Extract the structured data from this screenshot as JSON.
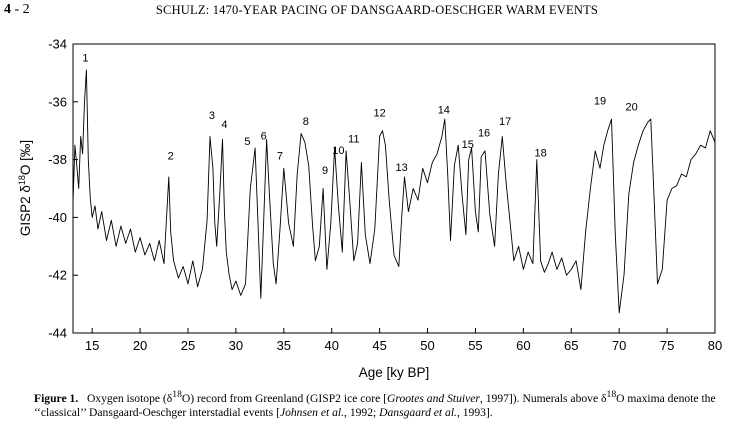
{
  "page": {
    "number": "4",
    "suffix": " - 2",
    "running_head": "SCHULZ: 1470-YEAR PACING OF DANSGAARD-OESCHGER WARM EVENTS"
  },
  "caption": {
    "label": "Figure 1.",
    "text": "Oxygen isotope (δ18O) record from Greenland (GISP2 ice core [Grootes and Stuiver, 1997]). Numerals above δ18O maxima denote the ‘‘classical’’ Dansgaard-Oeschger interstadial events [Johnsen et al., 1992; Dansgaard et al., 1993].",
    "p1": "Oxygen isotope (δ",
    "sup1": "18",
    "p2": "O) record from Greenland (GISP2 ice core [",
    "i1": "Grootes and Stuiver",
    "p3": ", 1997]). Numerals above δ",
    "sup2": "18",
    "p4": "O maxima denote the ‘‘classical’’ Dansgaard-Oeschger interstadial events [",
    "i2": "Johnsen et al.",
    "p5": ", 1992; ",
    "i3": "Dansgaard et al.",
    "p6": ", 1993]."
  },
  "chart_data": {
    "type": "line",
    "title": "",
    "xlabel": "Age [ky BP]",
    "ylabel": "GISP2 δ18O [‰]",
    "ylabel_parts": {
      "a": "GISP2 δ",
      "sup": "18",
      "b": "O [‰]"
    },
    "xlim": [
      13,
      80
    ],
    "ylim": [
      -44,
      -34
    ],
    "xticks": [
      15,
      20,
      25,
      30,
      35,
      40,
      45,
      50,
      55,
      60,
      65,
      70,
      75,
      80
    ],
    "yticks": [
      -34,
      -36,
      -38,
      -40,
      -42,
      -44
    ],
    "grid": false,
    "series": [
      {
        "name": "GISP2 δ18O",
        "x": [
          13.0,
          13.2,
          13.4,
          13.6,
          13.8,
          14.0,
          14.2,
          14.4,
          14.6,
          14.8,
          15.0,
          15.3,
          15.6,
          16.0,
          16.5,
          17.0,
          17.5,
          18.0,
          18.5,
          19.0,
          19.5,
          20.0,
          20.5,
          21.0,
          21.5,
          22.0,
          22.5,
          23.0,
          23.2,
          23.5,
          24.0,
          24.5,
          25.0,
          25.5,
          26.0,
          26.5,
          27.0,
          27.3,
          27.6,
          27.8,
          28.0,
          28.3,
          28.6,
          28.8,
          29.0,
          29.3,
          29.6,
          30.0,
          30.5,
          31.0,
          31.5,
          32.0,
          32.3,
          32.6,
          32.9,
          33.2,
          33.5,
          33.9,
          34.2,
          34.6,
          35.0,
          35.5,
          36.0,
          36.4,
          36.8,
          37.2,
          37.6,
          38.0,
          38.3,
          38.7,
          39.1,
          39.5,
          39.9,
          40.3,
          40.7,
          41.1,
          41.5,
          41.9,
          42.3,
          42.7,
          43.1,
          43.5,
          44.0,
          44.5,
          45.0,
          45.3,
          45.6,
          46.0,
          46.5,
          47.0,
          47.3,
          47.6,
          48.0,
          48.5,
          49.0,
          49.5,
          50.0,
          50.5,
          51.0,
          51.5,
          51.8,
          52.1,
          52.4,
          52.8,
          53.2,
          53.6,
          54.0,
          54.3,
          54.6,
          55.0,
          55.3,
          55.6,
          56.0,
          56.5,
          57.0,
          57.4,
          57.8,
          58.2,
          58.6,
          59.0,
          59.5,
          60.0,
          60.5,
          61.0,
          61.4,
          61.8,
          62.2,
          62.6,
          63.0,
          63.5,
          64.0,
          64.5,
          65.0,
          65.5,
          66.0,
          66.5,
          67.0,
          67.5,
          68.0,
          68.4,
          68.8,
          69.2,
          69.6,
          70.0,
          70.5,
          71.0,
          71.5,
          72.0,
          72.5,
          73.0,
          73.3,
          73.6,
          74.0,
          74.5,
          75.0,
          75.5,
          76.0,
          76.5,
          77.0,
          77.5,
          78.0,
          78.5,
          79.0,
          79.5,
          80.0
        ],
        "y": [
          -39.5,
          -37.5,
          -38.2,
          -39.0,
          -37.2,
          -37.8,
          -36.0,
          -34.9,
          -38.0,
          -39.3,
          -40.0,
          -39.6,
          -40.4,
          -39.8,
          -40.8,
          -40.1,
          -41.0,
          -40.3,
          -40.9,
          -40.4,
          -41.2,
          -40.7,
          -41.3,
          -40.9,
          -41.5,
          -40.8,
          -41.6,
          -38.6,
          -40.5,
          -41.5,
          -42.1,
          -41.7,
          -42.3,
          -41.5,
          -42.4,
          -41.8,
          -40.1,
          -37.2,
          -38.3,
          -40.2,
          -41.0,
          -39.3,
          -37.3,
          -39.8,
          -41.2,
          -42.0,
          -42.5,
          -42.2,
          -42.7,
          -42.3,
          -39.0,
          -37.6,
          -40.1,
          -42.8,
          -40.1,
          -37.3,
          -39.2,
          -41.6,
          -42.3,
          -40.4,
          -38.3,
          -40.2,
          -41.0,
          -38.5,
          -37.1,
          -37.4,
          -38.2,
          -40.3,
          -41.5,
          -41.0,
          -39.0,
          -41.8,
          -40.2,
          -37.6,
          -39.6,
          -41.2,
          -37.7,
          -39.5,
          -41.5,
          -40.9,
          -38.1,
          -40.6,
          -41.6,
          -40.4,
          -37.2,
          -37.0,
          -37.5,
          -39.4,
          -41.3,
          -41.7,
          -40.0,
          -38.6,
          -39.8,
          -39.0,
          -39.4,
          -38.3,
          -38.8,
          -38.1,
          -37.8,
          -37.2,
          -36.6,
          -38.5,
          -40.8,
          -38.2,
          -37.5,
          -39.2,
          -40.6,
          -38.0,
          -37.6,
          -39.8,
          -40.5,
          -37.9,
          -37.7,
          -39.9,
          -41.0,
          -38.5,
          -37.2,
          -38.8,
          -40.1,
          -41.5,
          -41.0,
          -41.8,
          -41.2,
          -41.6,
          -38.0,
          -41.5,
          -41.9,
          -41.6,
          -41.2,
          -41.8,
          -41.4,
          -42.0,
          -41.8,
          -41.5,
          -42.5,
          -40.5,
          -39.0,
          -37.7,
          -38.3,
          -37.5,
          -37.0,
          -36.6,
          -40.6,
          -43.3,
          -42.0,
          -39.2,
          -38.1,
          -37.5,
          -37.0,
          -36.7,
          -36.6,
          -39.0,
          -42.3,
          -41.8,
          -39.4,
          -39.0,
          -38.9,
          -38.5,
          -38.6,
          -38.0,
          -37.8,
          -37.5,
          -37.6,
          -37.0,
          -37.4
        ]
      }
    ],
    "annotations": [
      {
        "label": "1",
        "x": 14.3,
        "y": -34.6
      },
      {
        "label": "2",
        "x": 23.2,
        "y": -38.0
      },
      {
        "label": "3",
        "x": 27.5,
        "y": -36.6
      },
      {
        "label": "4",
        "x": 28.8,
        "y": -36.9
      },
      {
        "label": "5",
        "x": 31.2,
        "y": -37.5
      },
      {
        "label": "6",
        "x": 32.9,
        "y": -37.3
      },
      {
        "label": "7",
        "x": 34.6,
        "y": -38.0
      },
      {
        "label": "8",
        "x": 37.3,
        "y": -36.8
      },
      {
        "label": "9",
        "x": 39.3,
        "y": -38.5
      },
      {
        "label": "10",
        "x": 40.7,
        "y": -37.8
      },
      {
        "label": "11",
        "x": 42.3,
        "y": -37.4
      },
      {
        "label": "12",
        "x": 45.0,
        "y": -36.5
      },
      {
        "label": "13",
        "x": 47.3,
        "y": -38.4
      },
      {
        "label": "14",
        "x": 51.7,
        "y": -36.4
      },
      {
        "label": "15",
        "x": 54.2,
        "y": -37.6
      },
      {
        "label": "16",
        "x": 55.9,
        "y": -37.2
      },
      {
        "label": "17",
        "x": 58.1,
        "y": -36.8
      },
      {
        "label": "18",
        "x": 61.8,
        "y": -37.9
      },
      {
        "label": "19",
        "x": 68.0,
        "y": -36.1
      },
      {
        "label": "20",
        "x": 71.3,
        "y": -36.3
      }
    ]
  }
}
